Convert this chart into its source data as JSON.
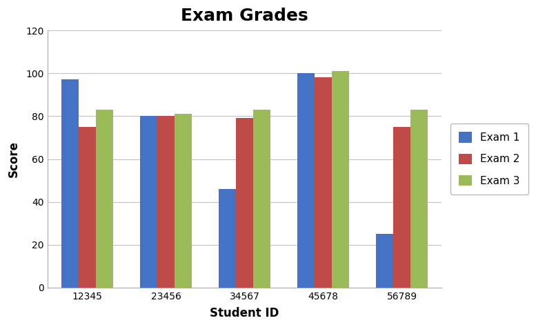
{
  "title": "Exam Grades",
  "xlabel": "Student ID",
  "ylabel": "Score",
  "categories": [
    "12345",
    "23456",
    "34567",
    "45678",
    "56789"
  ],
  "series": {
    "Exam 1": [
      97,
      80,
      46,
      100,
      25
    ],
    "Exam 2": [
      75,
      80,
      79,
      98,
      75
    ],
    "Exam 3": [
      83,
      81,
      83,
      101,
      83
    ]
  },
  "colors": {
    "Exam 1": "#4472C4",
    "Exam 2": "#BE4B48",
    "Exam 3": "#9BBB59"
  },
  "ylim": [
    0,
    120
  ],
  "yticks": [
    0,
    20,
    40,
    60,
    80,
    100,
    120
  ],
  "bar_width": 0.22,
  "plot_bg": "#FFFFFF",
  "fig_bg": "#FFFFFF",
  "grid_color": "#C0C0C0",
  "title_fontsize": 18,
  "axis_label_fontsize": 12,
  "tick_fontsize": 10,
  "legend_fontsize": 11
}
